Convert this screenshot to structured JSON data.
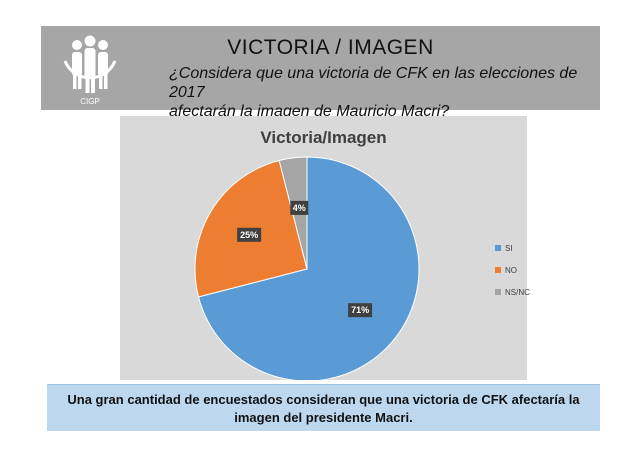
{
  "header": {
    "logo_text": "CIGP",
    "title": "VICTORIA / IMAGEN",
    "subtitle_line1": "¿Considera que una victoria de CFK en las elecciones de 2017",
    "subtitle_line2": "afectarán la imagen de Mauricio Macri?"
  },
  "chart_data": {
    "type": "pie",
    "title": "Victoria/Imagen",
    "categories": [
      "SI",
      "NO",
      "NS/NC"
    ],
    "values": [
      71,
      25,
      4
    ],
    "labels": [
      "71%",
      "25%",
      "4%"
    ],
    "colors": [
      "#5b9bd5",
      "#ed7d31",
      "#a5a5a5"
    ],
    "legend_position": "right"
  },
  "footer": {
    "text_line1": "Una gran cantidad de encuestados consideran que una victoria de CFK afectaría la",
    "text_line2": "imagen del presidente Macri."
  }
}
